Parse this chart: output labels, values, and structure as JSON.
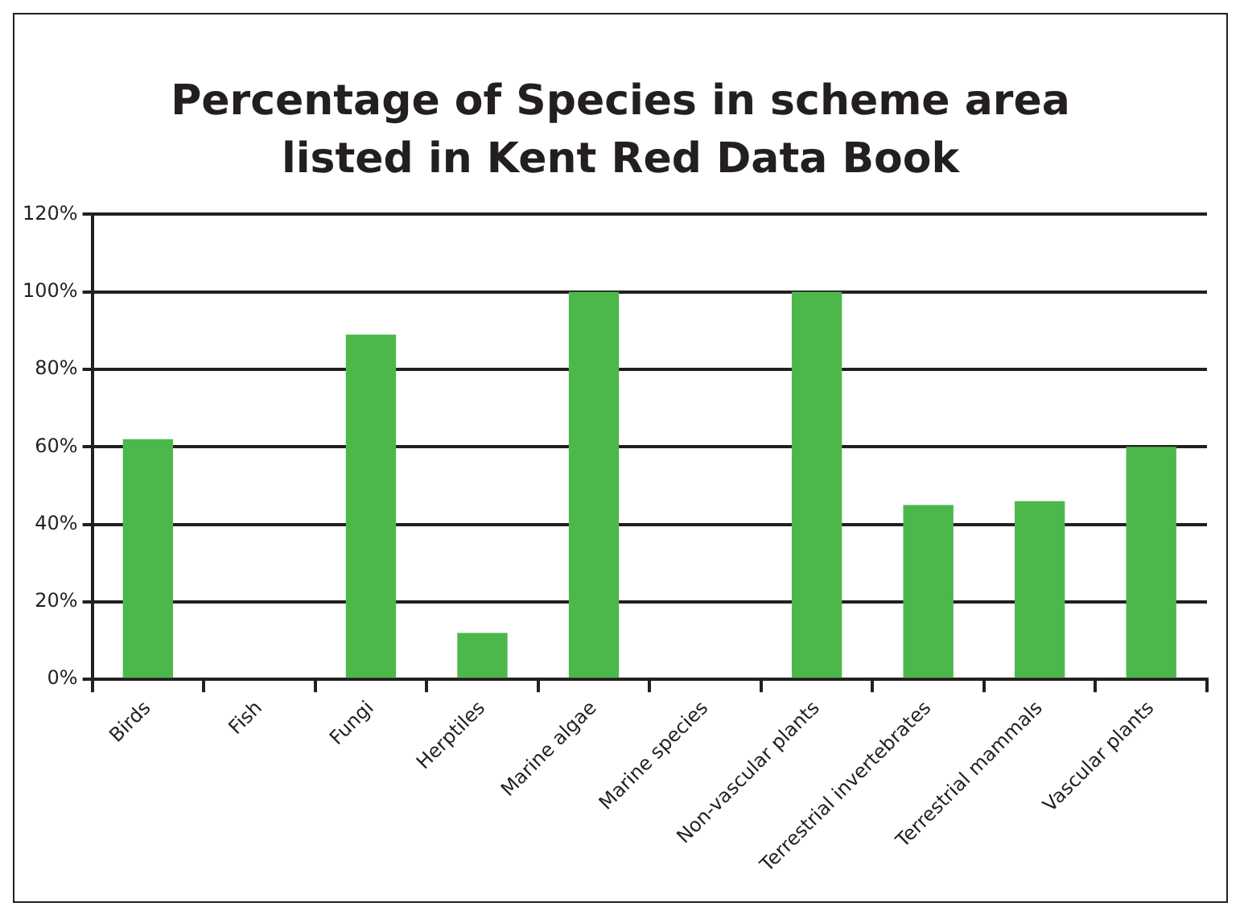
{
  "chart_data": {
    "type": "bar",
    "title": "Percentage of Species in scheme area listed in Kent Red Data Book",
    "categories": [
      "Birds",
      "Fish",
      "Fungi",
      "Herptiles",
      "Marine algae",
      "Marine species",
      "Non-vascular plants",
      "Terrestrial invertebrates",
      "Terrestrial mammals",
      "Vascular plants"
    ],
    "values": [
      62,
      0,
      89,
      12,
      100,
      0,
      100,
      45,
      46,
      60
    ],
    "color": "#4cb84c",
    "ylim": [
      0,
      120
    ],
    "yticks": [
      {
        "value": 0,
        "label": "0%"
      },
      {
        "value": 20,
        "label": "20%"
      },
      {
        "value": 40,
        "label": "40%"
      },
      {
        "value": 60,
        "label": "60%"
      },
      {
        "value": 80,
        "label": "80%"
      },
      {
        "value": 100,
        "label": "100%"
      },
      {
        "value": 120,
        "label": "120%"
      }
    ],
    "grid": "y",
    "legend": false
  }
}
